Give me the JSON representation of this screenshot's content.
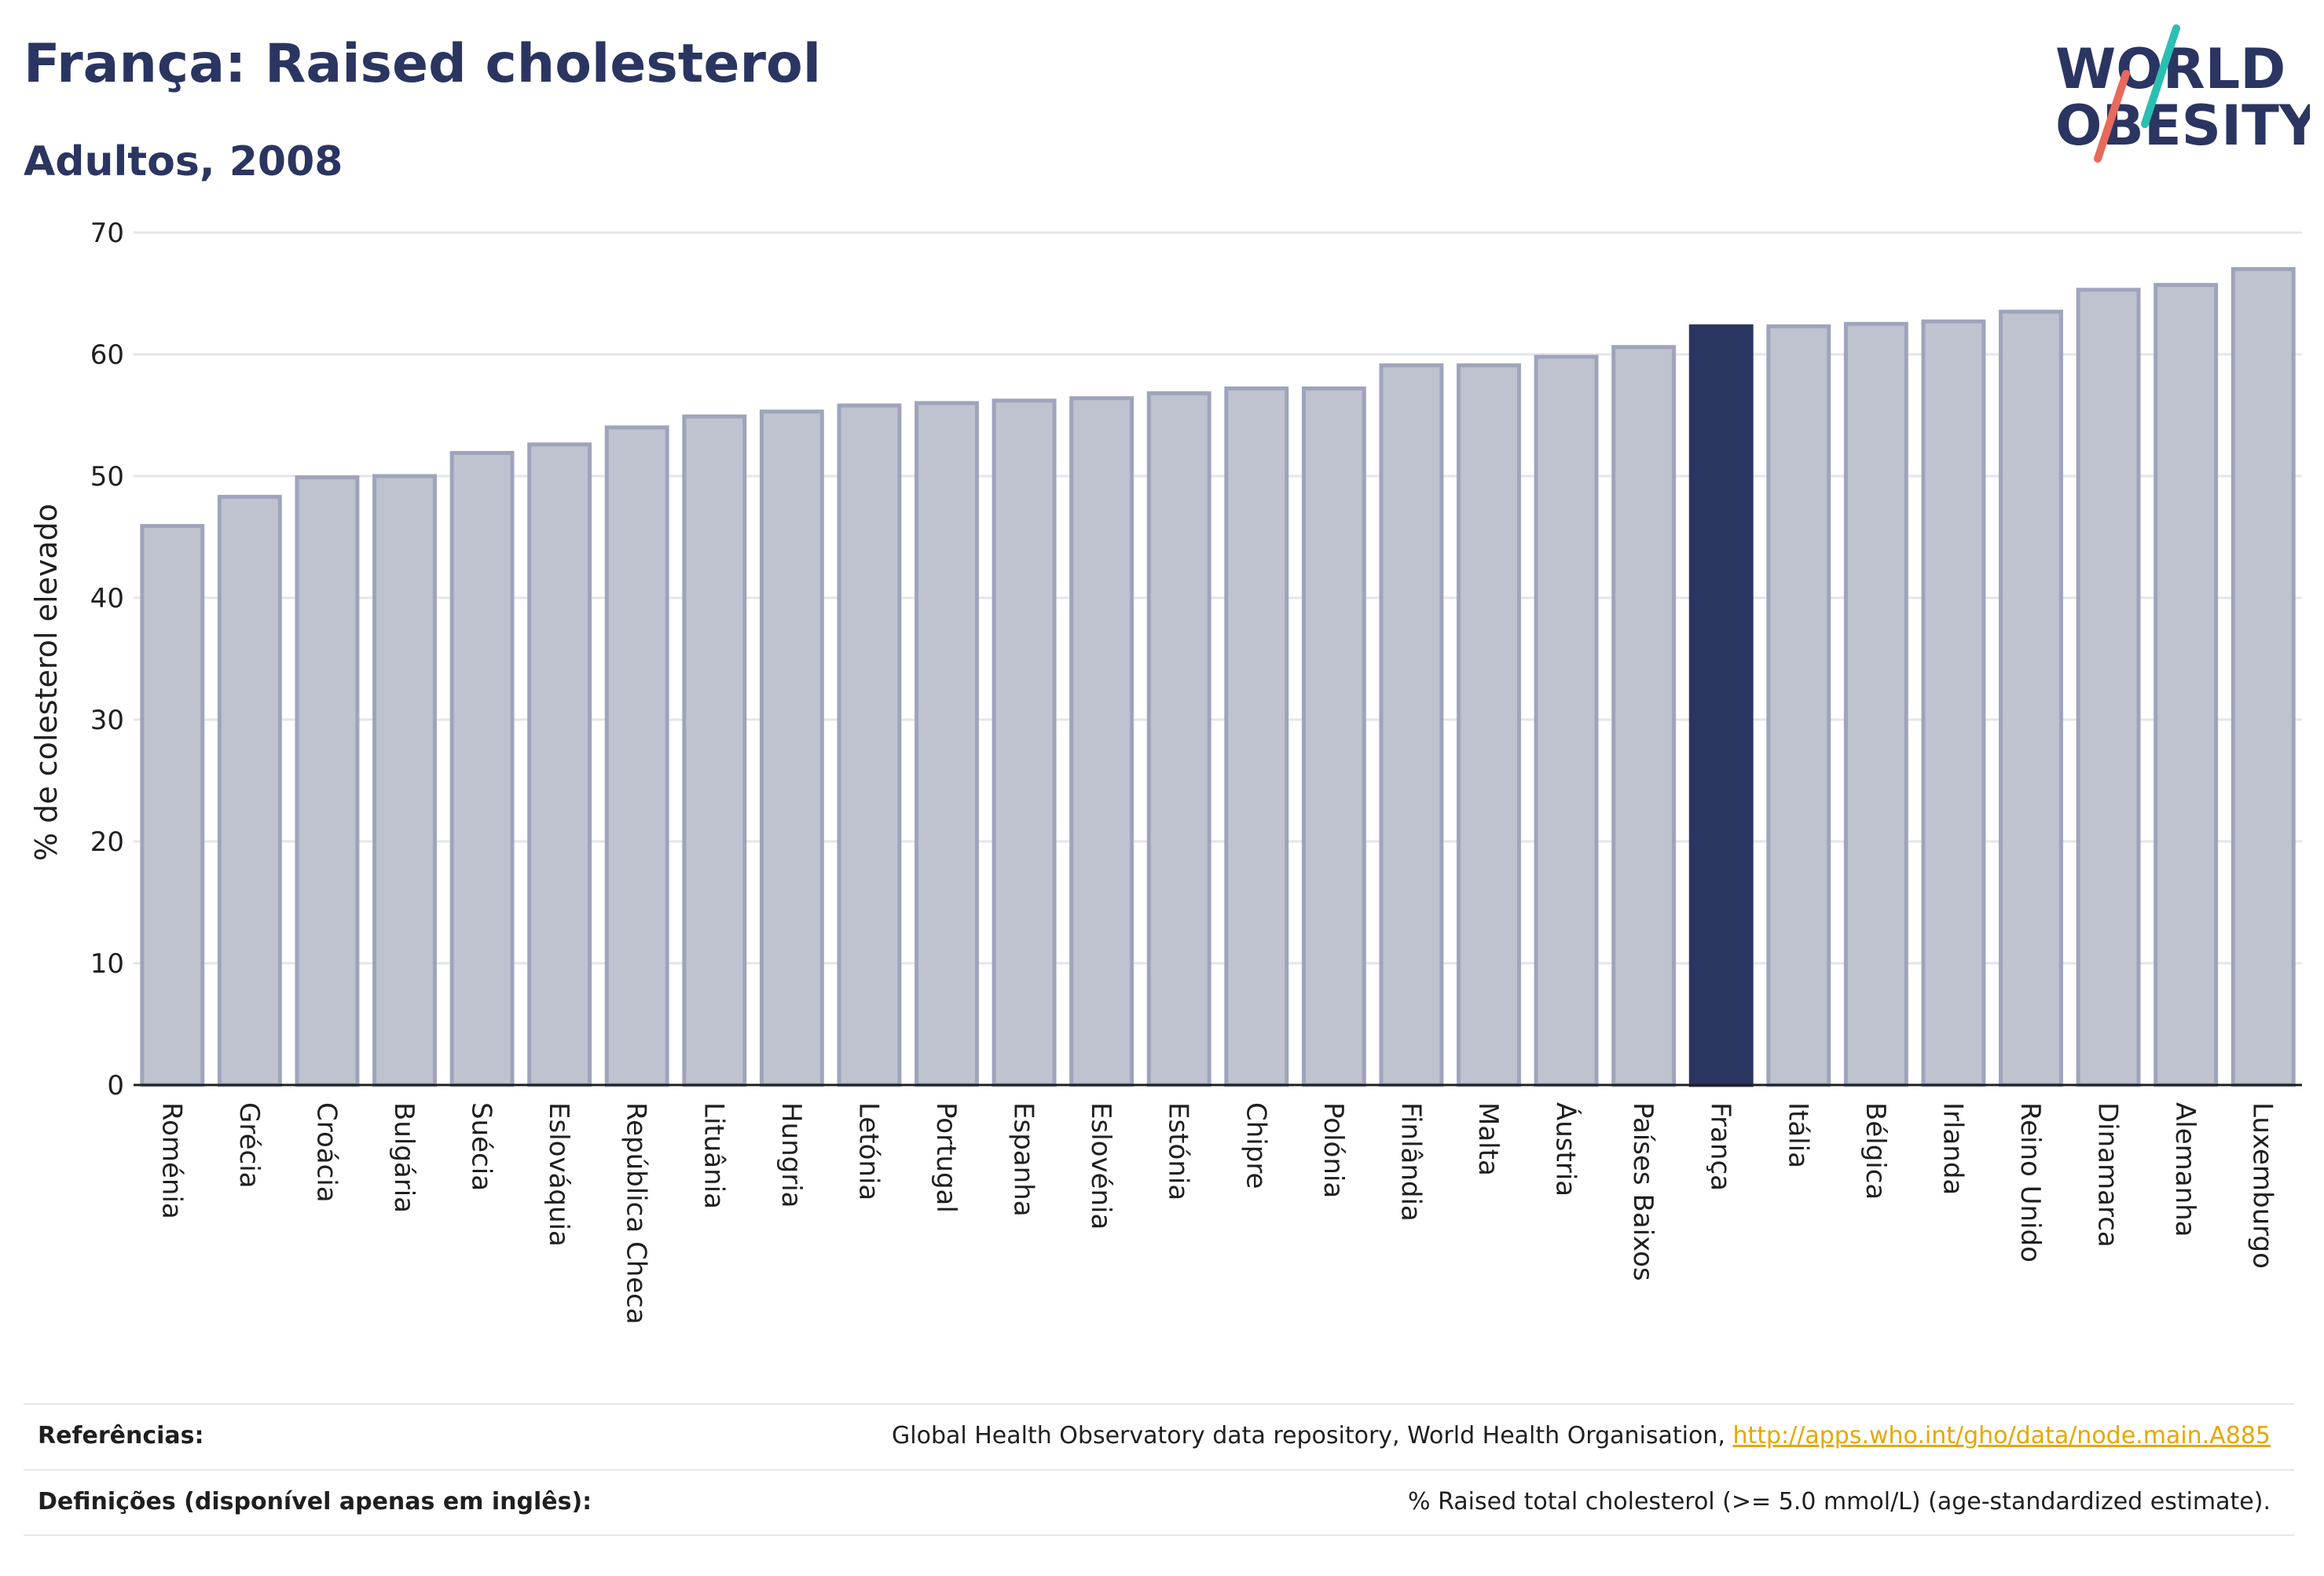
{
  "header": {
    "title": "França: Raised cholesterol",
    "subtitle": "Adultos, 2008"
  },
  "logo": {
    "line1": "WORLD",
    "line2": "OBESITY",
    "text_color": "#2b3561",
    "slash_colors": [
      "#2bbfb3",
      "#e86a5a"
    ]
  },
  "chart_data": {
    "type": "bar",
    "ylabel": "% de colesterol elevado",
    "ylim": [
      0,
      70
    ],
    "yticks": [
      0,
      10,
      20,
      30,
      40,
      50,
      60,
      70
    ],
    "grid": true,
    "highlight": "França",
    "colors": {
      "bar": "#bfc3d0",
      "bar_border": "#9ea4bb",
      "highlight": "#2b3561",
      "grid": "#e3e5ec",
      "axis": "#1f1f1f"
    },
    "categories": [
      "Roménia",
      "Grécia",
      "Croácia",
      "Bulgária",
      "Suécia",
      "Eslováquia",
      "República Checa",
      "Lituânia",
      "Hungria",
      "Letónia",
      "Portugal",
      "Espanha",
      "Eslovénia",
      "Estónia",
      "Chipre",
      "Polónia",
      "Finlândia",
      "Malta",
      "Áustria",
      "Países Baixos",
      "França",
      "Itália",
      "Bélgica",
      "Irlanda",
      "Reino Unido",
      "Dinamarca",
      "Alemanha",
      "Luxemburgo"
    ],
    "values": [
      45.9,
      48.3,
      49.9,
      50.0,
      51.9,
      52.6,
      54.0,
      54.9,
      55.3,
      55.8,
      56.0,
      56.2,
      56.4,
      56.8,
      57.2,
      57.2,
      59.1,
      59.1,
      59.8,
      60.6,
      62.3,
      62.3,
      62.5,
      62.7,
      63.5,
      65.3,
      65.7,
      67.0
    ]
  },
  "footer": {
    "references_label": "Referências:",
    "references_text": "Global Health Observatory data repository, World Health Organisation, ",
    "references_link": "http://apps.who.int/gho/data/node.main.A885",
    "definitions_label": "Definições (disponível apenas em inglês):",
    "definitions_text": "% Raised total cholesterol (>= 5.0 mmol/L) (age-standardized estimate)."
  }
}
